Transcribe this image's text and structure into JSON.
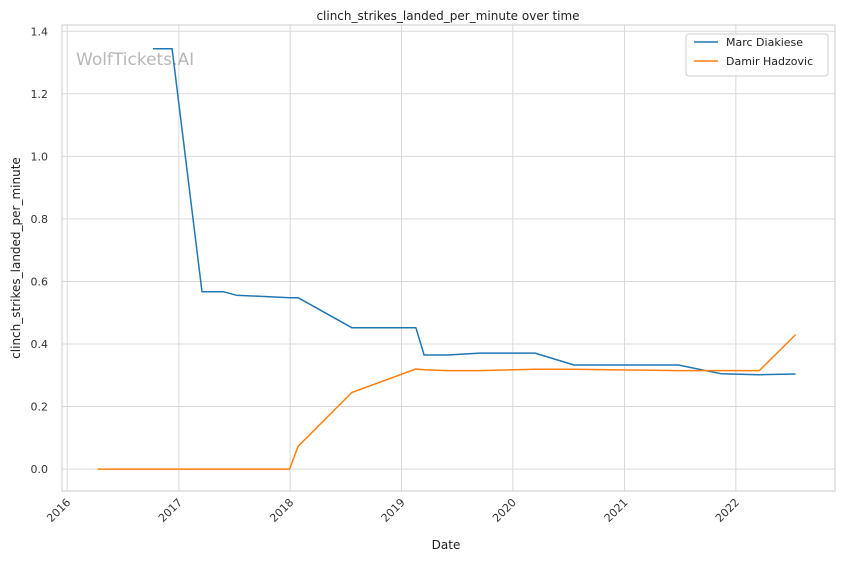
{
  "chart_data": {
    "type": "line",
    "title": "clinch_strikes_landed_per_minute over time",
    "xlabel": "Date",
    "ylabel": "clinch_strikes_landed_per_minute",
    "watermark": "WolfTickets.AI",
    "x_ticks": [
      "2016",
      "2017",
      "2018",
      "2019",
      "2020",
      "2021",
      "2022"
    ],
    "y_ticks": [
      "0.0",
      "0.2",
      "0.4",
      "0.6",
      "0.8",
      "1.0",
      "1.2",
      "1.4"
    ],
    "xlim": [
      "2015-12-15",
      "2022-11-22"
    ],
    "ylim": [
      -0.07,
      1.42
    ],
    "grid": true,
    "legend_position": "top-right",
    "series": [
      {
        "name": "Marc Diakiese",
        "color": "#1f77b4",
        "points": [
          [
            "2016-10-08",
            1.344
          ],
          [
            "2016-12-10",
            1.344
          ],
          [
            "2017-03-18",
            0.567
          ],
          [
            "2017-05-28",
            0.567
          ],
          [
            "2017-07-08",
            0.556
          ],
          [
            "2017-12-30",
            0.548
          ],
          [
            "2018-01-27",
            0.548
          ],
          [
            "2018-07-22",
            0.452
          ],
          [
            "2019-02-17",
            0.452
          ],
          [
            "2019-03-16",
            0.365
          ],
          [
            "2019-06-01",
            0.365
          ],
          [
            "2019-09-14",
            0.371
          ],
          [
            "2020-03-14",
            0.371
          ],
          [
            "2020-07-19",
            0.333
          ],
          [
            "2021-06-26",
            0.333
          ],
          [
            "2021-11-13",
            0.305
          ],
          [
            "2022-03-19",
            0.302
          ],
          [
            "2022-07-16",
            0.304
          ]
        ]
      },
      {
        "name": "Damir Hadzovic",
        "color": "#ff7f0e",
        "points": [
          [
            "2016-04-10",
            0.0
          ],
          [
            "2017-12-30",
            0.0
          ],
          [
            "2018-01-27",
            0.073
          ],
          [
            "2018-07-22",
            0.245
          ],
          [
            "2019-02-17",
            0.32
          ],
          [
            "2019-03-16",
            0.318
          ],
          [
            "2019-06-01",
            0.315
          ],
          [
            "2019-09-14",
            0.315
          ],
          [
            "2020-03-14",
            0.319
          ],
          [
            "2020-07-19",
            0.319
          ],
          [
            "2021-06-26",
            0.315
          ],
          [
            "2021-11-13",
            0.315
          ],
          [
            "2022-03-19",
            0.315
          ],
          [
            "2022-07-16",
            0.43
          ]
        ]
      }
    ]
  }
}
